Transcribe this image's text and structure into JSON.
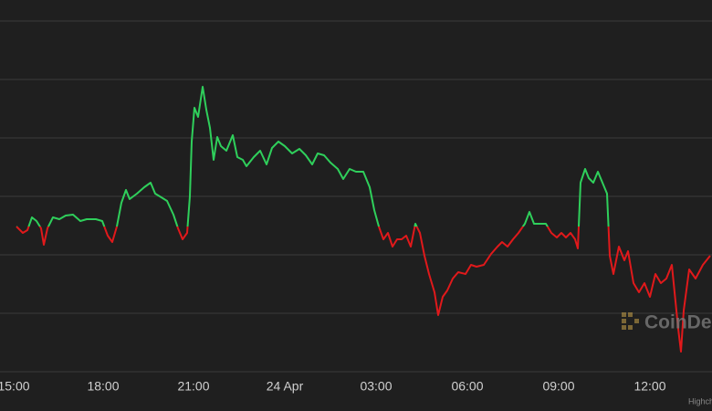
{
  "chart_data": {
    "type": "line",
    "x": [
      3,
      10,
      15,
      20,
      25,
      30,
      33,
      37,
      43,
      50,
      57,
      65,
      73,
      80,
      90,
      97,
      103,
      108,
      113,
      118,
      123,
      127,
      135,
      143,
      150,
      155,
      160,
      168,
      175,
      180,
      185,
      190,
      193,
      195,
      198,
      202,
      207,
      211,
      215,
      219,
      223,
      227,
      233,
      240,
      245,
      251,
      255,
      263,
      270,
      277,
      283,
      290,
      297,
      305,
      313,
      320,
      327,
      333,
      340,
      347,
      355,
      361,
      368,
      375,
      383,
      390,
      395,
      400,
      405,
      410,
      415,
      420,
      425,
      430,
      435,
      440,
      445,
      450,
      455,
      461,
      465,
      470,
      475,
      481,
      487,
      495,
      501,
      507,
      515,
      523,
      530,
      535,
      541,
      547,
      553,
      560,
      565,
      570,
      577,
      583,
      589,
      595,
      600,
      605,
      610,
      615,
      618,
      621,
      626,
      630,
      635,
      640,
      645,
      650,
      653,
      657,
      663,
      669,
      673,
      679,
      685,
      691,
      697,
      703,
      709,
      715,
      721,
      725,
      728,
      731,
      734,
      740,
      747,
      755,
      763
    ],
    "values": [
      159,
      152,
      155,
      169,
      165,
      157,
      139,
      157,
      169,
      167,
      171,
      172,
      165,
      167,
      167,
      165,
      149,
      142,
      159,
      185,
      199,
      189,
      195,
      202,
      207,
      195,
      192,
      187,
      172,
      157,
      145,
      152,
      192,
      252,
      289,
      279,
      312,
      287,
      267,
      232,
      257,
      247,
      242,
      259,
      235,
      232,
      225,
      235,
      242,
      227,
      245,
      252,
      247,
      239,
      244,
      237,
      227,
      239,
      237,
      229,
      222,
      211,
      222,
      219,
      219,
      202,
      177,
      159,
      145,
      152,
      137,
      145,
      145,
      149,
      137,
      162,
      152,
      127,
      107,
      87,
      62,
      82,
      89,
      102,
      109,
      107,
      117,
      115,
      117,
      129,
      137,
      142,
      137,
      145,
      152,
      162,
      175,
      162,
      162,
      162,
      152,
      147,
      152,
      147,
      152,
      145,
      135,
      207,
      222,
      212,
      207,
      219,
      207,
      195,
      127,
      107,
      137,
      122,
      132,
      97,
      87,
      97,
      82,
      107,
      97,
      102,
      117,
      77,
      47,
      22,
      67,
      112,
      102,
      117,
      127
    ],
    "baseline": 159,
    "color_above": "#2fcf5b",
    "color_below": "#e0191b",
    "xlim": [
      -15,
      765
    ],
    "ylim": [
      0,
      407
    ],
    "xticks": [
      {
        "value": 0,
        "label": "15:00"
      },
      {
        "value": 98,
        "label": "18:00"
      },
      {
        "value": 197,
        "label": "21:00"
      },
      {
        "value": 297,
        "label": "24 Apr"
      },
      {
        "value": 397,
        "label": "03:00"
      },
      {
        "value": 497,
        "label": "06:00"
      },
      {
        "value": 597,
        "label": "09:00"
      },
      {
        "value": 697,
        "label": "12:00"
      }
    ],
    "yticks": [
      0,
      64,
      128,
      192,
      256,
      320,
      384
    ],
    "grid": true,
    "watermark": "CoinDesk",
    "credit": "Highcharts.com"
  }
}
